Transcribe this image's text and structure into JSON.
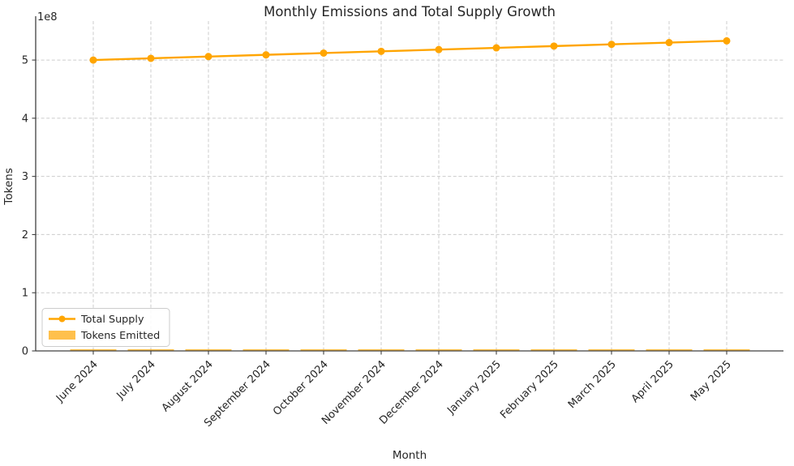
{
  "chart_data": {
    "type": "line+bar",
    "title": "Monthly Emissions and Total Supply Growth",
    "xlabel": "Month",
    "ylabel": "Tokens",
    "y_axis_offset_label": "1e8",
    "categories": [
      "June 2024",
      "July 2024",
      "August 2024",
      "September 2024",
      "October 2024",
      "November 2024",
      "December 2024",
      "January 2025",
      "February 2025",
      "March 2025",
      "April 2025",
      "May 2025"
    ],
    "series": [
      {
        "name": "Total Supply",
        "type": "line",
        "color": "#FFA500",
        "marker": "circle",
        "values": [
          500000000,
          503000000,
          506000000,
          509000000,
          512000000,
          515000000,
          518000000,
          521000000,
          524000000,
          527000000,
          530000000,
          533000000
        ]
      },
      {
        "name": "Tokens Emitted",
        "type": "bar",
        "color": "#FFA500",
        "opacity": 0.7,
        "values": [
          3000000,
          3000000,
          3000000,
          3000000,
          3000000,
          3000000,
          3000000,
          3000000,
          3000000,
          3000000,
          3000000,
          3000000
        ]
      }
    ],
    "ylim": [
      0,
      567000000
    ],
    "yticks": {
      "values": [
        0,
        100000000,
        200000000,
        300000000,
        400000000,
        500000000
      ],
      "labels": [
        "0",
        "1",
        "2",
        "3",
        "4",
        "5"
      ]
    },
    "grid": true,
    "grid_style": "dashed",
    "legend": {
      "position": "lower left"
    },
    "colors": {
      "text": "#262626",
      "grid": "#cccccc",
      "spine": "#404040",
      "background": "#ffffff"
    }
  }
}
